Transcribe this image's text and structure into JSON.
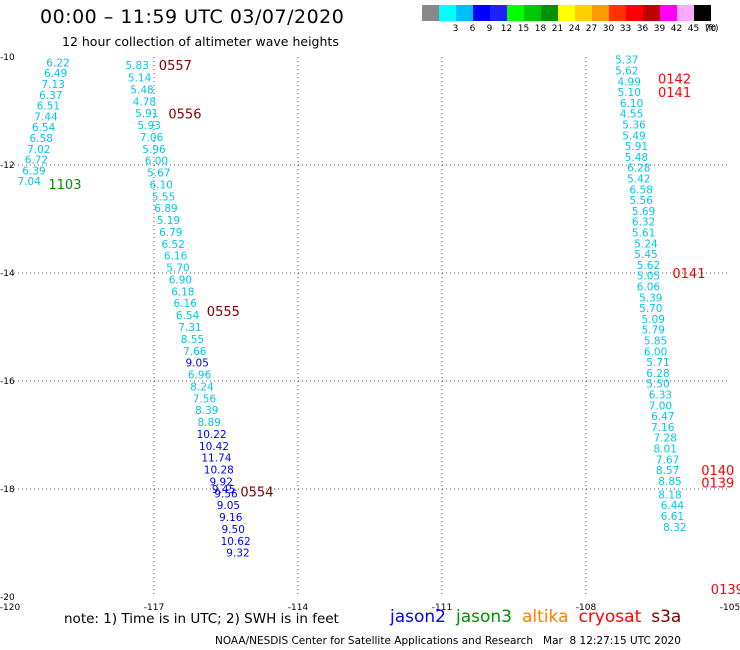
{
  "title": "00:00 – 11:59 UTC 03/07/2020",
  "subtitle": "12 hour collection of altimeter wave heights",
  "color_scale": {
    "labels": [
      "",
      "3",
      "6",
      "9",
      "12",
      "15",
      "18",
      "21",
      "24",
      "27",
      "30",
      "33",
      "36",
      "39",
      "42",
      "45",
      "70"
    ],
    "colors": [
      "#888888",
      "#00ffff",
      "#00bfff",
      "#0000ff",
      "#2020ff",
      "#00ff00",
      "#00c800",
      "#009000",
      "#ffff00",
      "#ffd000",
      "#ff9900",
      "#ff3300",
      "#ff0000",
      "#c00000",
      "#ff00ff",
      "#ffaaff",
      "#000000"
    ],
    "unit": "(ft)"
  },
  "note": "note: 1) Time is in UTC; 2) SWH is in feet",
  "satellites": [
    {
      "name": "jason2",
      "color": "#0000ff"
    },
    {
      "name": "jason3",
      "color": "#009000"
    },
    {
      "name": "altika",
      "color": "#ff8000"
    },
    {
      "name": "cryosat",
      "color": "#ff0000"
    },
    {
      "name": "s3a",
      "color": "#800000"
    }
  ],
  "footer": "NOAA/NESDIS Center for Satellite Applications and Research   Mar  8 12:27:15 UTC 2020",
  "chart_data": {
    "type": "scatter",
    "title": "00:00 – 11:59 UTC 03/07/2020",
    "subtitle": "12 hour collection of altimeter wave heights",
    "xlim": [
      -120,
      -105
    ],
    "ylim": [
      -20,
      -10
    ],
    "x_ticks": [
      "-120",
      "-117",
      "-114",
      "-111",
      "-108",
      "-105"
    ],
    "y_ticks": [
      "-10",
      "-12",
      "-14",
      "-16",
      "-18",
      "-20"
    ],
    "grid": true,
    "pass_labels": [
      {
        "text": "0557",
        "x": -116.9,
        "y": -10.15,
        "color": "#800000"
      },
      {
        "text": "0556",
        "x": -116.7,
        "y": -11.05,
        "color": "#800000"
      },
      {
        "text": "1103",
        "x": -119.2,
        "y": -12.35,
        "color": "#009000"
      },
      {
        "text": "0555",
        "x": -115.9,
        "y": -14.7,
        "color": "#800000"
      },
      {
        "text": "0554",
        "x": -115.2,
        "y": -18.05,
        "color": "#800000"
      },
      {
        "text": "0142",
        "x": -106.5,
        "y": -10.4,
        "color": "#ff0000"
      },
      {
        "text": "0141",
        "x": -106.5,
        "y": -10.65,
        "color": "#ff0000"
      },
      {
        "text": "0141",
        "x": -106.2,
        "y": -14.0,
        "color": "#ff0000"
      },
      {
        "text": "0140",
        "x": -105.6,
        "y": -17.65,
        "color": "#ff0000"
      },
      {
        "text": "0139",
        "x": -105.6,
        "y": -17.88,
        "color": "#ff0000"
      },
      {
        "text": "0139",
        "x": -105.4,
        "y": -19.85,
        "color": "#ff0000"
      }
    ],
    "series": [
      {
        "name": "1103",
        "color": "#00bfff",
        "x": [
          -119.0,
          -119.05,
          -119.1,
          -119.15,
          -119.2,
          -119.25,
          -119.3,
          -119.35,
          -119.4,
          -119.45,
          -119.5,
          -119.6
        ],
        "y": [
          -10.1,
          -10.3,
          -10.5,
          -10.7,
          -10.9,
          -11.1,
          -11.3,
          -11.5,
          -11.7,
          -11.9,
          -12.1,
          -12.3
        ],
        "values": [
          "6.22",
          "6.49",
          "7.13",
          "6.37",
          "6.51",
          "7.44",
          "6.54",
          "6.58",
          "7.02",
          "6.72",
          "6.39",
          "7.04"
        ]
      },
      {
        "name": "0557-0554",
        "color": "#00bfff",
        "x": [
          -117.35,
          -117.3,
          -117.25,
          -117.2,
          -117.15,
          -117.1,
          -117.05,
          -117.0,
          -116.95,
          -116.9,
          -116.85,
          -116.8,
          -116.75,
          -116.7,
          -116.65,
          -116.6,
          -116.55,
          -116.5,
          -116.45,
          -116.4,
          -116.35,
          -116.3,
          -116.25,
          -116.2,
          -116.15,
          -116.1,
          -116.05,
          -116.0,
          -115.95,
          -115.9,
          -115.85,
          -115.8,
          -115.75,
          -115.7,
          -115.65,
          -115.6,
          -115.55,
          -115.5,
          -115.45,
          -115.4,
          -115.35,
          -115.3,
          -115.25,
          -115.2,
          -115.15,
          -115.1,
          -115.05
        ],
        "y": [
          -10.15,
          -10.38,
          -10.6,
          -10.82,
          -11.04,
          -11.26,
          -11.48,
          -11.7,
          -11.92,
          -12.14,
          -12.36,
          -12.58,
          -12.8,
          -13.02,
          -13.24,
          -13.46,
          -13.68,
          -13.9,
          -14.12,
          -14.34,
          -14.56,
          -14.78,
          -15.0,
          -15.22,
          -15.44,
          -15.66,
          -15.88,
          -16.1,
          -16.32,
          -16.54,
          -16.76,
          -16.98,
          -17.2,
          -17.42,
          -17.64,
          -17.86,
          -18.0,
          -18.08,
          -18.3,
          -18.52,
          -18.74,
          -18.96,
          -19.18,
          -19.4,
          -19.62,
          -19.84,
          -20.0
        ],
        "values": [
          "5.83",
          "5.14",
          "5.48",
          "4.78",
          "5.91",
          "5.93",
          "7.06",
          "5.96",
          "6.00",
          "5.67",
          "6.10",
          "5.55",
          "6.89",
          "5.19",
          "6.79",
          "6.52",
          "6.16",
          "5.70",
          "6.90",
          "6.18",
          "6.16",
          "6.54",
          "7.31",
          "8.55",
          "7.66",
          "9.05",
          "6.96",
          "8.24",
          "7.56",
          "8.39",
          "8.89",
          "10.22",
          "10.42",
          "11.74",
          "10.28",
          "9.92",
          "9.45",
          "9.56",
          "9.05",
          "9.16",
          "9.50",
          "10.62",
          "9.32",
          "",
          "",
          "",
          ""
        ]
      },
      {
        "name": "0142-0139",
        "color": "#00bfff",
        "x": [
          -107.15,
          -107.15,
          -107.1,
          -107.1,
          -107.05,
          -107.05,
          -107.0,
          -107.0,
          -106.95,
          -106.95,
          -106.9,
          -106.9,
          -106.85,
          -106.85,
          -106.8,
          -106.8,
          -106.8,
          -106.75,
          -106.75,
          -106.7,
          -106.7,
          -106.7,
          -106.65,
          -106.65,
          -106.6,
          -106.6,
          -106.55,
          -106.55,
          -106.5,
          -106.5,
          -106.5,
          -106.45,
          -106.45,
          -106.4,
          -106.4,
          -106.35,
          -106.35,
          -106.3,
          -106.3,
          -106.25,
          -106.25,
          -106.2,
          -106.2,
          -106.15,
          -106.15,
          -106.1,
          -106.1
        ],
        "y": [
          -10.05,
          -10.25,
          -10.45,
          -10.65,
          -10.85,
          -11.05,
          -11.25,
          -11.45,
          -11.65,
          -11.85,
          -12.05,
          -12.25,
          -12.45,
          -12.65,
          -12.85,
          -13.05,
          -13.25,
          -13.45,
          -13.65,
          -13.85,
          -14.05,
          -14.25,
          -14.45,
          -14.65,
          -14.85,
          -15.05,
          -15.25,
          -15.45,
          -15.65,
          -15.85,
          -16.05,
          -16.25,
          -16.45,
          -16.65,
          -16.85,
          -17.05,
          -17.25,
          -17.45,
          -17.65,
          -17.85,
          -18.1,
          -18.3,
          -18.5,
          -18.7,
          -18.9,
          -19.1,
          -19.3
        ],
        "values": [
          "5.37",
          "5.62",
          "4.99",
          "5.10",
          "6.10",
          "4.55",
          "5.36",
          "5.49",
          "5.91",
          "5.48",
          "6.28",
          "5.42",
          "6.58",
          "5.56",
          "5.69",
          "6.32",
          "5.61",
          "5.24",
          "5.45",
          "5.62",
          "5.05",
          "6.06",
          "5.39",
          "5.70",
          "5.09",
          "5.79",
          "5.85",
          "6.00",
          "5.71",
          "6.28",
          "5.50",
          "6.33",
          "7.00",
          "6.47",
          "7.16",
          "7.28",
          "8.01",
          "7.67",
          "8.57",
          "8.85",
          "8.18",
          "6.44",
          "6.61",
          "8.32",
          "",
          "",
          ""
        ]
      }
    ]
  }
}
